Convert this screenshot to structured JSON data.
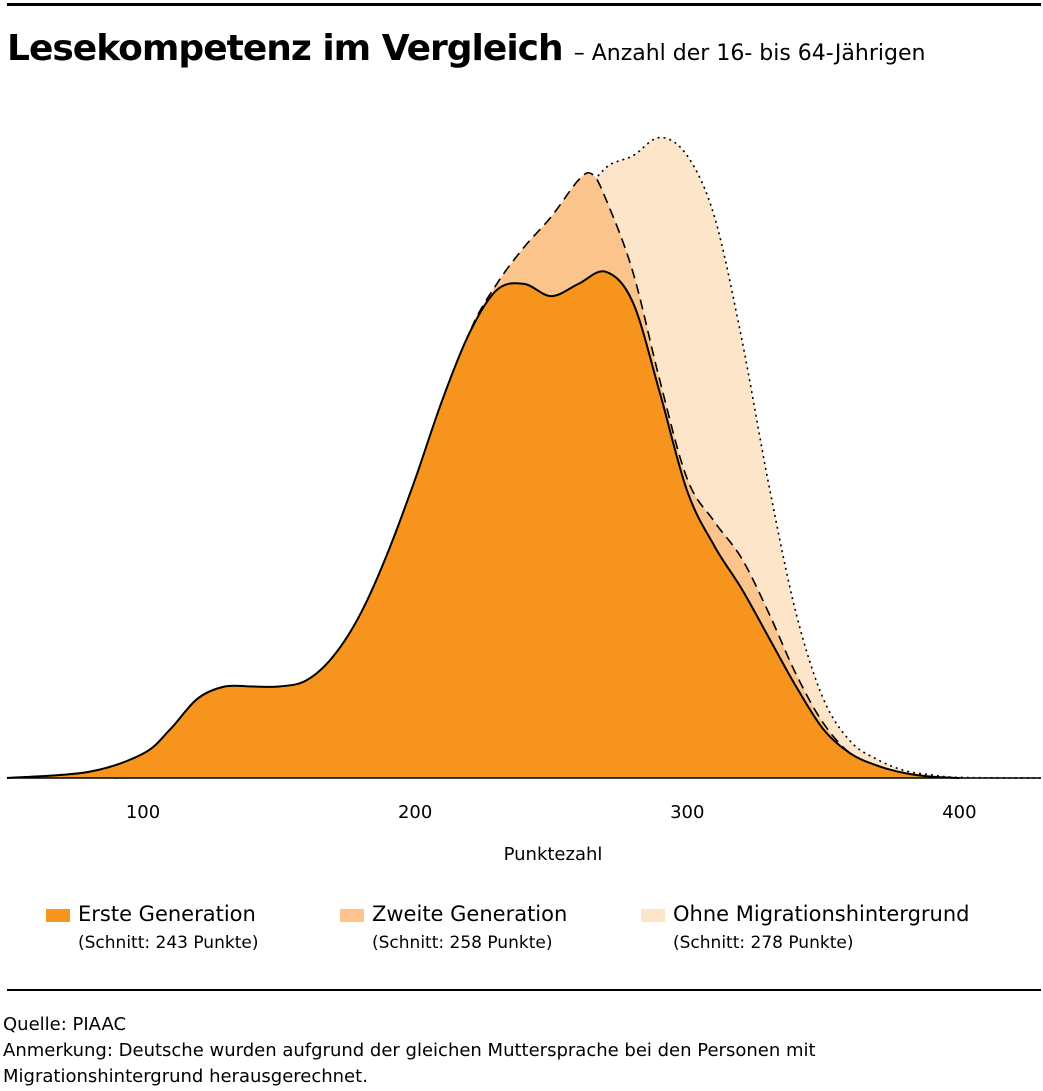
{
  "header": {
    "title": "Lesekompetenz im Vergleich",
    "subtitle": "– Anzahl der 16- bis 64-Jährigen"
  },
  "chart_data": {
    "type": "area",
    "title": "Lesekompetenz im Vergleich",
    "subtitle": "– Anzahl der 16- bis 64-Jährigen",
    "xlabel": "Punktezahl",
    "ylabel": "",
    "xlim": [
      50,
      430
    ],
    "ylim": [
      0,
      1
    ],
    "x_ticks": [
      100,
      200,
      300,
      400
    ],
    "grid": false,
    "legend_position": "bottom",
    "series": [
      {
        "name": "Ohne Migrationshintergrund",
        "note": "(Schnitt: 278 Punkte)",
        "color": "#fde5c9",
        "line_style": "dotted",
        "x": [
          90,
          120,
          150,
          160,
          170,
          180,
          190,
          200,
          210,
          220,
          230,
          240,
          250,
          260,
          270,
          280,
          290,
          300,
          310,
          320,
          330,
          340,
          350,
          360,
          370,
          380,
          390,
          400,
          430
        ],
        "y": [
          0,
          0.003,
          0.01,
          0.02,
          0.05,
          0.1,
          0.18,
          0.27,
          0.37,
          0.47,
          0.58,
          0.72,
          0.85,
          0.94,
          1.0,
          1.02,
          1.05,
          1.02,
          0.92,
          0.72,
          0.48,
          0.27,
          0.13,
          0.06,
          0.03,
          0.012,
          0.005,
          0.001,
          0
        ]
      },
      {
        "name": "Zweite Generation",
        "note": "(Schnitt: 258 Punkte)",
        "color": "#fbc48c",
        "line_style": "dashed",
        "x": [
          100,
          110,
          120,
          130,
          140,
          150,
          160,
          170,
          180,
          190,
          200,
          210,
          220,
          230,
          240,
          250,
          260,
          265,
          270,
          280,
          290,
          300,
          310,
          320,
          330,
          340,
          350,
          360,
          370,
          380,
          390
        ],
        "y": [
          0,
          0.02,
          0.05,
          0.08,
          0.11,
          0.13,
          0.15,
          0.18,
          0.22,
          0.31,
          0.43,
          0.59,
          0.73,
          0.81,
          0.87,
          0.92,
          0.98,
          0.99,
          0.95,
          0.83,
          0.65,
          0.49,
          0.42,
          0.36,
          0.27,
          0.17,
          0.09,
          0.04,
          0.02,
          0.008,
          0
        ]
      },
      {
        "name": "Erste Generation",
        "note": "(Schnitt: 243 Punkte)",
        "color": "#f7941d",
        "line_style": "solid",
        "x": [
          50,
          80,
          100,
          110,
          120,
          130,
          140,
          150,
          160,
          170,
          180,
          190,
          200,
          210,
          220,
          230,
          240,
          250,
          260,
          270,
          280,
          290,
          300,
          310,
          320,
          330,
          340,
          350,
          360,
          370,
          380,
          390,
          400
        ],
        "y": [
          0,
          0.01,
          0.04,
          0.08,
          0.13,
          0.15,
          0.15,
          0.15,
          0.16,
          0.2,
          0.27,
          0.37,
          0.49,
          0.62,
          0.73,
          0.8,
          0.81,
          0.79,
          0.81,
          0.83,
          0.78,
          0.63,
          0.47,
          0.38,
          0.31,
          0.23,
          0.15,
          0.08,
          0.04,
          0.02,
          0.008,
          0.002,
          0
        ]
      }
    ]
  },
  "legend": {
    "items": [
      {
        "name": "Erste Generation",
        "note": "(Schnitt: 243 Punkte)",
        "color": "#f7941d"
      },
      {
        "name": "Zweite Generation",
        "note": "(Schnitt: 258 Punkte)",
        "color": "#fbc48c"
      },
      {
        "name": "Ohne Migrationshintergrund",
        "note": "(Schnitt: 278 Punkte)",
        "color": "#fde5c9"
      }
    ]
  },
  "footer": {
    "source": "Quelle: PIAAC",
    "note_line1": "Anmerkung: Deutsche wurden aufgrund der gleichen Muttersprache bei den Personen mit",
    "note_line2": "Migrationshintergrund herausgerechnet."
  }
}
